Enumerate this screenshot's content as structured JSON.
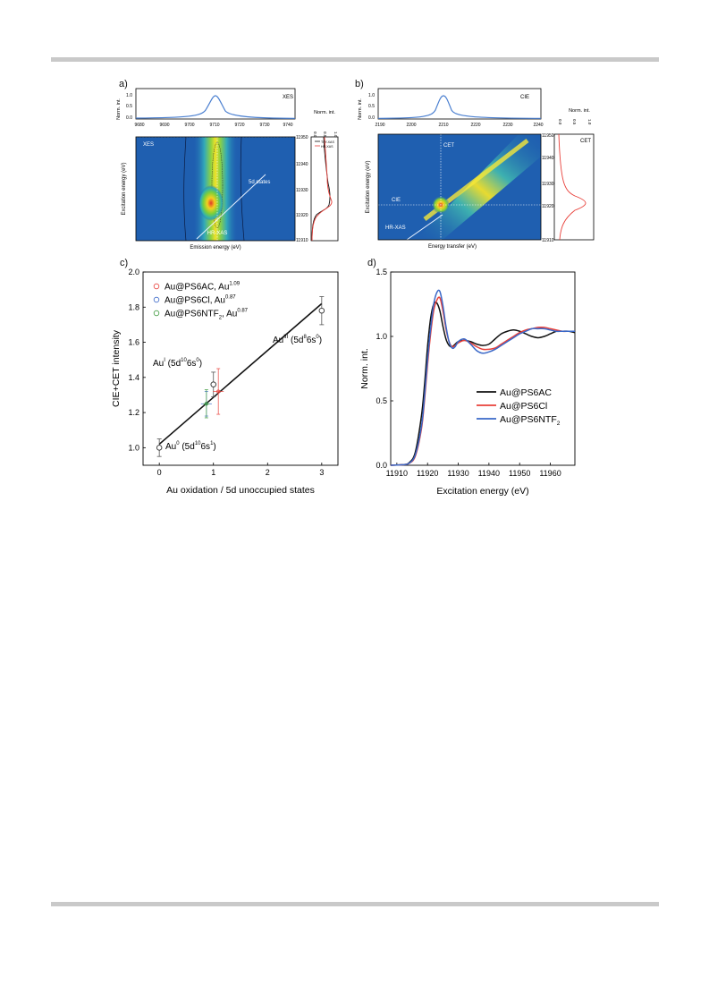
{
  "panels": {
    "a": {
      "letter": "a)",
      "top": {
        "label": "XES",
        "ylabel": "Norm. int.",
        "yticks": [
          "0.0",
          "0.5",
          "1.0"
        ],
        "xticks": [
          "9680",
          "9690",
          "9700",
          "9710",
          "9720",
          "9730",
          "9740"
        ]
      },
      "map": {
        "xlabel": "Emission energy (eV)",
        "ylabel": "Excitation energy (eV)",
        "yticks": [
          "11910",
          "11920",
          "11930",
          "11940",
          "11950"
        ],
        "annotations": [
          "XES",
          "5d states",
          "HR-XAS"
        ]
      },
      "side": {
        "xlabel": "Norm. int.",
        "xticks": [
          "0.0",
          "0.5",
          "1.0"
        ],
        "legend": [
          "TFY-XAS",
          "HR-XAS"
        ]
      }
    },
    "b": {
      "letter": "b)",
      "top": {
        "label": "CIE",
        "ylabel": "Norm. int.",
        "yticks": [
          "0.0",
          "0.5",
          "1.0"
        ],
        "xticks": [
          "2190",
          "2200",
          "2210",
          "2220",
          "2230",
          "2240"
        ]
      },
      "map": {
        "xlabel": "Energy transfer (eV)",
        "ylabel": "Excitation energy (eV)",
        "yticks": [
          "11910",
          "11920",
          "11930",
          "11940",
          "11950"
        ],
        "annotations": [
          "CET",
          "CIE",
          "HR-XAS"
        ]
      },
      "side": {
        "label": "CET",
        "xlabel": "Norm. int.",
        "xticks": [
          "0.0",
          "0.5",
          "1.0"
        ]
      }
    },
    "c": {
      "letter": "c)"
    },
    "d": {
      "letter": "d)"
    }
  },
  "chart_data": [
    {
      "id": "c",
      "type": "scatter",
      "xlabel": "Au oxidation / 5d unoccupied states",
      "ylabel": "CIE+CET intensity",
      "xlim": [
        -0.3,
        3.3
      ],
      "ylim": [
        0.9,
        2.0
      ],
      "xticks": [
        0,
        1,
        2,
        3
      ],
      "yticks": [
        1.0,
        1.2,
        1.4,
        1.6,
        1.8,
        2.0
      ],
      "grid": false,
      "legend_position": "top-left",
      "reference_points": [
        {
          "x": 0,
          "y": 1.0,
          "err": 0.05,
          "label_main": "Au",
          "label_sup": "0",
          "label_config": " (5d",
          "label_config_sup1": "10",
          "label_config_mid": "6s",
          "label_config_sup2": "1",
          "label_end": ")"
        },
        {
          "x": 1,
          "y": 1.36,
          "err": 0.07,
          "label_main": "Au",
          "label_sup": "I",
          "label_config": " (5d",
          "label_config_sup1": "10",
          "label_config_mid": "6s",
          "label_config_sup2": "0",
          "label_end": ")"
        },
        {
          "x": 3,
          "y": 1.78,
          "err": 0.08,
          "label_main": "Au",
          "label_sup": "III",
          "label_config": " (5d",
          "label_config_sup1": "8",
          "label_config_mid": "6s",
          "label_config_sup2": "0",
          "label_end": ")"
        }
      ],
      "fit_line": {
        "x": [
          0,
          3
        ],
        "y": [
          1.02,
          1.82
        ]
      },
      "series": [
        {
          "name": "Au@PS6AC, Au",
          "name_sup": "1.09",
          "color": "#e8403a",
          "x": 1.09,
          "y": 1.32,
          "xerr": 0.1,
          "yerr": 0.13
        },
        {
          "name": "Au@PS6Cl, Au",
          "name_sup": "0.87",
          "color": "#3a68c8",
          "x": 0.87,
          "y": 1.25,
          "xerr": 0.1,
          "yerr": 0.07
        },
        {
          "name": "Au@PS6NTF",
          "name_sub": "2",
          "name_mid": ", Au",
          "name_sup": "0.87",
          "color": "#3f9a3f",
          "x": 0.87,
          "y": 1.25,
          "xerr": 0.06,
          "yerr": 0.08
        }
      ]
    },
    {
      "id": "d",
      "type": "line",
      "xlabel": "Excitation energy (eV)",
      "ylabel": "Norm. int.",
      "xlim": [
        11908,
        11968
      ],
      "ylim": [
        0.0,
        1.5
      ],
      "xticks": [
        11910,
        11920,
        11930,
        11940,
        11950,
        11960
      ],
      "yticks": [
        0.0,
        0.5,
        1.0,
        1.5
      ],
      "legend_position": "center-right",
      "series": [
        {
          "name": "Au@PS6AC",
          "color": "#111111",
          "x": [
            11908,
            11912,
            11914,
            11916,
            11918,
            11919,
            11920,
            11921,
            11922,
            11923,
            11924,
            11925,
            11926,
            11927,
            11928,
            11929,
            11930,
            11932,
            11934,
            11936,
            11938,
            11940,
            11942,
            11944,
            11946,
            11948,
            11950,
            11952,
            11954,
            11956,
            11958,
            11960,
            11962,
            11964,
            11966,
            11968
          ],
          "y": [
            0.0,
            0.005,
            0.02,
            0.1,
            0.38,
            0.62,
            0.92,
            1.14,
            1.25,
            1.26,
            1.2,
            1.08,
            0.98,
            0.93,
            0.92,
            0.94,
            0.96,
            0.97,
            0.96,
            0.94,
            0.93,
            0.94,
            0.98,
            1.02,
            1.04,
            1.05,
            1.04,
            1.02,
            1.0,
            0.99,
            1.0,
            1.02,
            1.04,
            1.04,
            1.04,
            1.03
          ]
        },
        {
          "name": "Au@PS6Cl",
          "color": "#e8403a",
          "x": [
            11908,
            11912,
            11914,
            11916,
            11918,
            11919,
            11920,
            11921,
            11922,
            11923,
            11924,
            11925,
            11926,
            11927,
            11928,
            11929,
            11930,
            11932,
            11934,
            11936,
            11938,
            11940,
            11942,
            11944,
            11946,
            11948,
            11950,
            11952,
            11954,
            11956,
            11958,
            11960,
            11962,
            11964,
            11966,
            11968
          ],
          "y": [
            0.0,
            0.004,
            0.015,
            0.07,
            0.28,
            0.5,
            0.78,
            1.02,
            1.2,
            1.28,
            1.3,
            1.2,
            1.06,
            0.96,
            0.92,
            0.93,
            0.95,
            0.97,
            0.95,
            0.92,
            0.9,
            0.9,
            0.91,
            0.94,
            0.97,
            1.0,
            1.03,
            1.05,
            1.06,
            1.07,
            1.07,
            1.06,
            1.05,
            1.04,
            1.04,
            1.04
          ]
        },
        {
          "name": "Au@PS6NTF",
          "name_sub": "2",
          "color": "#3a68c8",
          "x": [
            11908,
            11912,
            11914,
            11916,
            11918,
            11919,
            11920,
            11921,
            11922,
            11923,
            11924,
            11925,
            11926,
            11927,
            11928,
            11929,
            11930,
            11932,
            11934,
            11936,
            11938,
            11940,
            11942,
            11944,
            11946,
            11948,
            11950,
            11952,
            11954,
            11956,
            11958,
            11960,
            11962,
            11964,
            11966,
            11968
          ],
          "y": [
            0.0,
            0.004,
            0.016,
            0.08,
            0.3,
            0.53,
            0.82,
            1.06,
            1.25,
            1.34,
            1.35,
            1.24,
            1.08,
            0.96,
            0.91,
            0.92,
            0.96,
            0.98,
            0.94,
            0.89,
            0.87,
            0.88,
            0.9,
            0.93,
            0.96,
            0.99,
            1.02,
            1.04,
            1.06,
            1.06,
            1.06,
            1.05,
            1.04,
            1.04,
            1.04,
            1.04
          ]
        }
      ]
    }
  ]
}
